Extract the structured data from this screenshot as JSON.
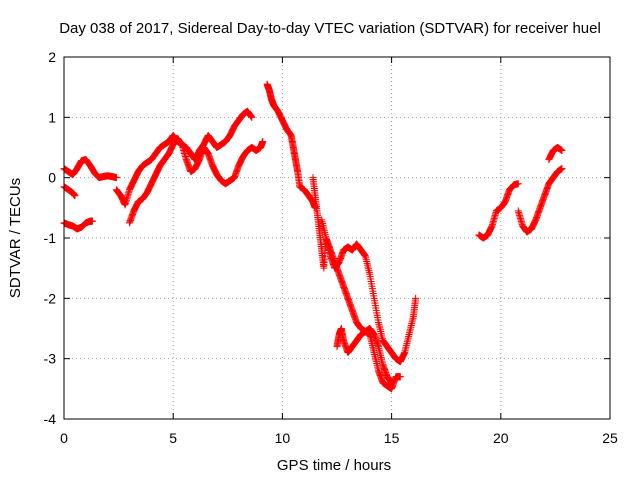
{
  "chart_data": {
    "type": "scatter",
    "title": "Day 038 of 2017, Sidereal Day-to-day VTEC variation (SDTVAR) for receiver huel",
    "xlabel": "GPS time / hours",
    "ylabel": "SDTVAR / TECUs",
    "xlim": [
      0,
      25
    ],
    "ylim": [
      -4,
      2
    ],
    "xticks": [
      "0",
      "5",
      "10",
      "15",
      "20",
      "25"
    ],
    "yticks": [
      "-4",
      "-3",
      "-2",
      "-1",
      "0",
      "1",
      "2"
    ],
    "grid": true,
    "marker": "+",
    "color": "#ff0000",
    "series": [
      {
        "x": [
          0.0,
          0.2,
          0.4,
          0.6,
          0.8,
          1.0,
          1.2,
          1.4,
          1.6,
          1.8,
          2.0,
          2.2,
          2.4
        ],
        "y": [
          0.15,
          0.1,
          0.05,
          0.15,
          0.28,
          0.3,
          0.2,
          0.08,
          0.0,
          0.02,
          0.03,
          0.02,
          0.0
        ]
      },
      {
        "x": [
          0.0,
          0.2,
          0.4,
          0.5
        ],
        "y": [
          -0.15,
          -0.2,
          -0.25,
          -0.3
        ]
      },
      {
        "x": [
          0.0,
          0.2,
          0.4,
          0.6,
          0.8,
          1.0,
          1.2,
          1.3
        ],
        "y": [
          -0.75,
          -0.78,
          -0.8,
          -0.85,
          -0.82,
          -0.75,
          -0.72,
          -0.72
        ]
      },
      {
        "x": [
          2.4,
          2.6,
          2.8,
          3.0,
          3.2,
          3.4,
          3.6,
          3.8,
          4.0,
          4.2,
          4.4,
          4.6,
          4.8,
          5.0,
          5.2,
          5.4,
          5.6,
          5.8,
          6.0,
          6.2,
          6.4,
          6.6,
          6.8,
          7.0,
          7.2,
          7.4,
          7.6,
          7.8,
          8.0,
          8.2,
          8.4,
          8.6
        ],
        "y": [
          -0.2,
          -0.3,
          -0.45,
          -0.2,
          -0.05,
          0.1,
          0.2,
          0.25,
          0.3,
          0.4,
          0.5,
          0.55,
          0.6,
          0.7,
          0.6,
          0.55,
          0.5,
          0.4,
          0.3,
          0.45,
          0.55,
          0.7,
          0.6,
          0.5,
          0.55,
          0.6,
          0.7,
          0.85,
          0.95,
          1.05,
          1.1,
          1.0
        ]
      },
      {
        "x": [
          3.0,
          3.2,
          3.4,
          3.6,
          3.8,
          4.0,
          4.2,
          4.4,
          4.6,
          4.8,
          5.0,
          5.2,
          5.4,
          5.6,
          5.8,
          6.0,
          6.2,
          6.4,
          6.6,
          6.8,
          7.0,
          7.2,
          7.4,
          7.6,
          7.8,
          8.0,
          8.2,
          8.4,
          8.6,
          8.8,
          9.0,
          9.1
        ],
        "y": [
          -0.75,
          -0.55,
          -0.4,
          -0.35,
          -0.25,
          -0.1,
          0.05,
          0.2,
          0.3,
          0.4,
          0.55,
          0.65,
          0.55,
          0.3,
          0.1,
          0.15,
          0.3,
          0.5,
          0.4,
          0.2,
          0.05,
          -0.05,
          -0.1,
          -0.05,
          0.0,
          0.2,
          0.35,
          0.45,
          0.5,
          0.45,
          0.5,
          0.6
        ]
      },
      {
        "x": [
          9.3,
          9.4,
          9.5,
          9.6,
          9.8,
          10.0,
          10.2,
          10.4,
          10.5,
          10.6,
          10.7,
          10.8,
          11.0,
          11.2,
          11.4,
          11.5
        ],
        "y": [
          1.55,
          1.45,
          1.3,
          1.2,
          1.1,
          0.95,
          0.8,
          0.7,
          0.5,
          0.3,
          0.1,
          -0.15,
          -0.2,
          -0.3,
          -0.4,
          -0.5
        ]
      },
      {
        "x": [
          11.4,
          11.5,
          11.6,
          11.7,
          11.8,
          11.9,
          12.0,
          12.2,
          12.4,
          12.6,
          12.8,
          13.0,
          13.2,
          13.4,
          13.6,
          13.8,
          14.0,
          14.2,
          14.4,
          14.6,
          14.8,
          15.0,
          15.2,
          15.4,
          15.6,
          15.8,
          16.0,
          16.1
        ],
        "y": [
          0.0,
          -0.3,
          -0.6,
          -0.9,
          -1.2,
          -1.5,
          -1.0,
          -1.3,
          -1.5,
          -1.4,
          -1.2,
          -1.15,
          -1.2,
          -1.1,
          -1.2,
          -1.3,
          -1.6,
          -2.0,
          -2.4,
          -2.7,
          -2.8,
          -2.9,
          -3.0,
          -3.05,
          -2.9,
          -2.6,
          -2.3,
          -2.0
        ]
      },
      {
        "x": [
          11.8,
          12.0,
          12.2,
          12.4,
          12.6,
          12.8,
          13.0,
          13.2,
          13.4,
          13.6,
          13.8,
          14.0,
          14.2,
          14.4,
          14.6,
          14.8,
          15.0,
          15.2,
          15.4
        ],
        "y": [
          -0.7,
          -1.0,
          -1.2,
          -1.4,
          -1.6,
          -1.8,
          -2.0,
          -2.2,
          -2.4,
          -2.5,
          -2.55,
          -2.6,
          -2.9,
          -3.2,
          -3.4,
          -3.45,
          -3.5,
          -3.3,
          -3.3
        ]
      },
      {
        "x": [
          12.5,
          12.6,
          12.7,
          12.8,
          13.0,
          13.2,
          13.4,
          13.6,
          13.8,
          14.0,
          14.2,
          14.4,
          14.6,
          14.8,
          15.0
        ],
        "y": [
          -2.8,
          -2.6,
          -2.5,
          -2.7,
          -2.9,
          -2.8,
          -2.7,
          -2.6,
          -2.55,
          -2.5,
          -2.6,
          -2.8,
          -3.1,
          -3.3,
          -3.4
        ]
      },
      {
        "x": [
          19.0,
          19.2,
          19.4,
          19.6,
          19.8,
          20.0,
          20.2,
          20.4,
          20.6,
          20.8
        ],
        "y": [
          -0.95,
          -1.0,
          -0.95,
          -0.8,
          -0.55,
          -0.5,
          -0.4,
          -0.2,
          -0.12,
          -0.1
        ]
      },
      {
        "x": [
          20.8,
          21.0,
          21.2,
          21.4,
          21.6,
          21.8,
          22.0,
          22.2,
          22.4,
          22.6,
          22.8
        ],
        "y": [
          -0.55,
          -0.8,
          -0.9,
          -0.85,
          -0.7,
          -0.5,
          -0.3,
          -0.1,
          0.0,
          0.1,
          0.15
        ]
      },
      {
        "x": [
          22.2,
          22.4,
          22.6,
          22.8
        ],
        "y": [
          0.3,
          0.45,
          0.5,
          0.45
        ]
      }
    ]
  }
}
